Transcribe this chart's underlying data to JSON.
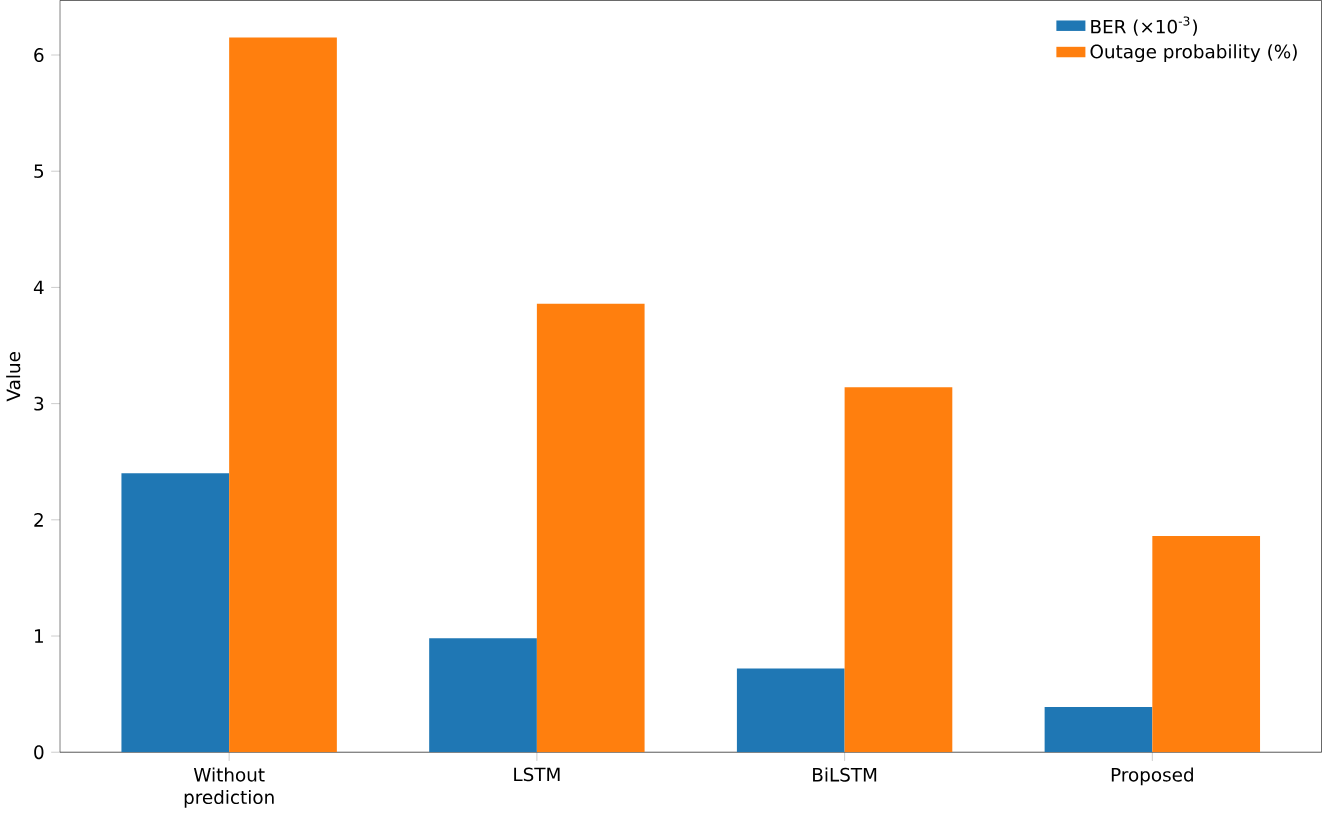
{
  "chart_data": {
    "type": "bar",
    "ylabel": "Value",
    "categories": [
      "Without prediction",
      "LSTM",
      "BiLSTM",
      "Proposed"
    ],
    "series": [
      {
        "name": "BER (×10$^{-3}$)",
        "color": "#1f77b4",
        "values": [
          2.4,
          0.98,
          0.72,
          0.39
        ]
      },
      {
        "name": "Outage probability (%)",
        "color": "#ff7f0e",
        "values": [
          6.15,
          3.86,
          3.14,
          1.86
        ]
      }
    ],
    "ylim": [
      0,
      6.47
    ],
    "yticks": [
      0,
      1,
      2,
      3,
      4,
      5,
      6
    ],
    "grid": false,
    "legend": "top right"
  }
}
